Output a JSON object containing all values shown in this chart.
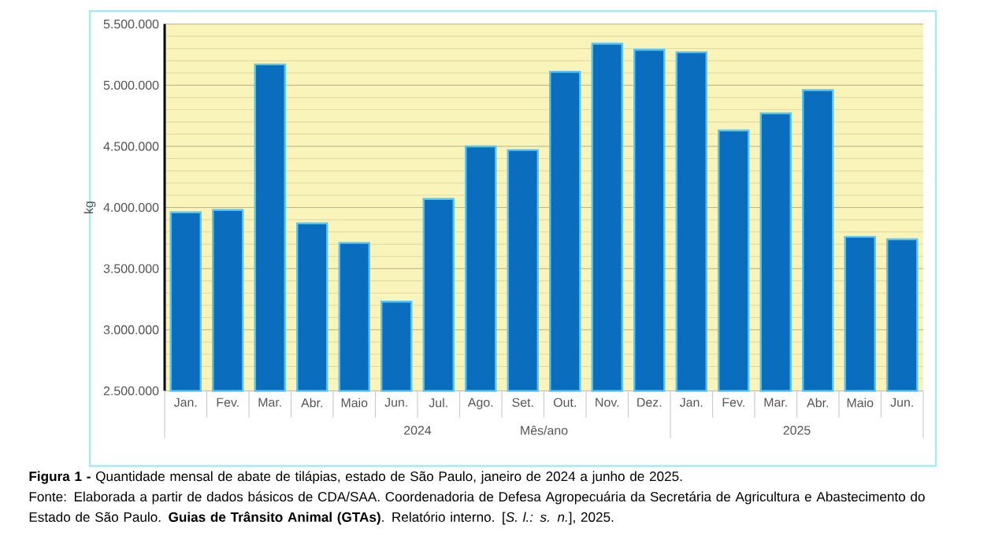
{
  "chart_data": {
    "type": "bar",
    "title": "**Figura 1 -** Quantidade mensal de abate de tilápias, estado de São Paulo, janeiro de 2024 a junho de 2025.",
    "xlabel": "Mês/ano",
    "ylabel": "kg",
    "categories": [
      "Jan.",
      "Fev.",
      "Mar.",
      "Abr.",
      "Maio",
      "Jun.",
      "Jul.",
      "Ago.",
      "Set.",
      "Out.",
      "Nov.",
      "Dez.",
      "Jan.",
      "Fev.",
      "Mar.",
      "Abr.",
      "Maio",
      "Jun."
    ],
    "values": [
      3960000,
      3980000,
      5170000,
      3870000,
      3710000,
      3230000,
      4070000,
      4500000,
      4470000,
      5110000,
      5340000,
      5290000,
      5270000,
      4630000,
      4770000,
      4960000,
      3760000,
      3740000
    ],
    "color": "#0a6dbd",
    "ylim": [
      2500000,
      5500000
    ],
    "yticks": [
      {
        "value": 2500000,
        "label": "2.500.000"
      },
      {
        "value": 2600000,
        "label": null
      },
      {
        "value": 2700000,
        "label": null
      },
      {
        "value": 2800000,
        "label": null
      },
      {
        "value": 2900000,
        "label": null
      },
      {
        "value": 3000000,
        "label": "3.000.000"
      },
      {
        "value": 3100000,
        "label": null
      },
      {
        "value": 3200000,
        "label": null
      },
      {
        "value": 3300000,
        "label": null
      },
      {
        "value": 3400000,
        "label": null
      },
      {
        "value": 3500000,
        "label": "3.500.000"
      },
      {
        "value": 3600000,
        "label": null
      },
      {
        "value": 3700000,
        "label": null
      },
      {
        "value": 3800000,
        "label": null
      },
      {
        "value": 3900000,
        "label": null
      },
      {
        "value": 4000000,
        "label": "4.000.000"
      },
      {
        "value": 4100000,
        "label": null
      },
      {
        "value": 4200000,
        "label": null
      },
      {
        "value": 4300000,
        "label": null
      },
      {
        "value": 4400000,
        "label": null
      },
      {
        "value": 4500000,
        "label": "4.500.000"
      },
      {
        "value": 4600000,
        "label": null
      },
      {
        "value": 4700000,
        "label": null
      },
      {
        "value": 4800000,
        "label": null
      },
      {
        "value": 4900000,
        "label": null
      },
      {
        "value": 5000000,
        "label": "5.000.000"
      },
      {
        "value": 5100000,
        "label": null
      },
      {
        "value": 5200000,
        "label": null
      },
      {
        "value": 5300000,
        "label": null
      },
      {
        "value": 5400000,
        "label": null
      },
      {
        "value": 5500000,
        "label": "5.500.000"
      }
    ],
    "grid": "y",
    "annotations": [
      "2024",
      "2025",
      "Fonte: Elaborada a partir de dados básicos de CDA/SAA. Coordenadoria de Defesa Agropecuária da Secretária de Agricultura e Abastecimento do Estado de São Paulo. **Guias de Trânsito Animal (GTAs)**. Relatório interno. [*S. l.: s. n.*], 2025."
    ]
  }
}
